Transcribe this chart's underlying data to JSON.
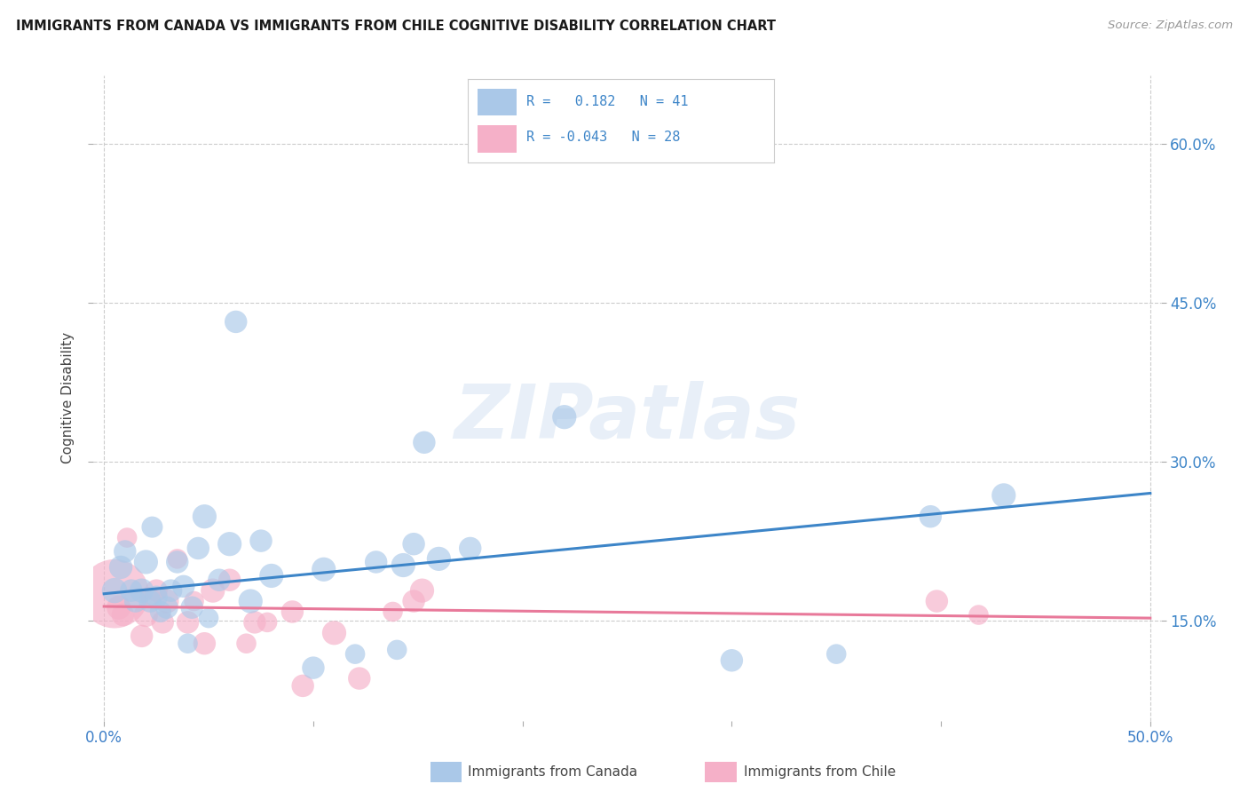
{
  "title": "IMMIGRANTS FROM CANADA VS IMMIGRANTS FROM CHILE COGNITIVE DISABILITY CORRELATION CHART",
  "source": "Source: ZipAtlas.com",
  "ylabel": "Cognitive Disability",
  "ytick_labels": [
    "15.0%",
    "30.0%",
    "45.0%",
    "60.0%"
  ],
  "ytick_values": [
    0.15,
    0.3,
    0.45,
    0.6
  ],
  "xlim": [
    -0.005,
    0.505
  ],
  "ylim": [
    0.055,
    0.665
  ],
  "xtick_values": [
    0.0,
    0.1,
    0.2,
    0.3,
    0.4,
    0.5
  ],
  "xtick_labels_visible": {
    "0.0": "0.0%",
    "0.5": "50.0%"
  },
  "legend_r_canada": "R =   0.182   N = 41",
  "legend_r_chile": "R = -0.043   N = 28",
  "canada_color": "#aac8e8",
  "chile_color": "#f5b0c8",
  "canada_line_color": "#3d85c8",
  "chile_line_color": "#e8799a",
  "watermark": "ZIPatlas",
  "canada_scatter_x": [
    0.005,
    0.008,
    0.01,
    0.013,
    0.015,
    0.018,
    0.02,
    0.022,
    0.023,
    0.025,
    0.027,
    0.03,
    0.032,
    0.035,
    0.038,
    0.04,
    0.042,
    0.045,
    0.048,
    0.05,
    0.055,
    0.06,
    0.063,
    0.07,
    0.075,
    0.08,
    0.1,
    0.105,
    0.12,
    0.13,
    0.14,
    0.143,
    0.148,
    0.153,
    0.16,
    0.175,
    0.22,
    0.3,
    0.35,
    0.395,
    0.43
  ],
  "canada_scatter_y": [
    0.178,
    0.2,
    0.215,
    0.178,
    0.168,
    0.178,
    0.205,
    0.168,
    0.238,
    0.172,
    0.158,
    0.162,
    0.178,
    0.205,
    0.182,
    0.128,
    0.162,
    0.218,
    0.248,
    0.152,
    0.188,
    0.222,
    0.432,
    0.168,
    0.225,
    0.192,
    0.105,
    0.198,
    0.118,
    0.205,
    0.122,
    0.202,
    0.222,
    0.318,
    0.208,
    0.218,
    0.342,
    0.112,
    0.118,
    0.248,
    0.268
  ],
  "canada_sizes": [
    35,
    30,
    28,
    28,
    28,
    32,
    32,
    28,
    25,
    28,
    25,
    28,
    28,
    28,
    28,
    22,
    28,
    28,
    32,
    22,
    28,
    32,
    28,
    32,
    28,
    32,
    28,
    32,
    22,
    28,
    22,
    32,
    28,
    28,
    32,
    28,
    32,
    28,
    22,
    28,
    32
  ],
  "chile_scatter_x": [
    0.005,
    0.007,
    0.009,
    0.011,
    0.018,
    0.02,
    0.022,
    0.025,
    0.028,
    0.03,
    0.035,
    0.04,
    0.043,
    0.048,
    0.052,
    0.06,
    0.068,
    0.072,
    0.078,
    0.09,
    0.095,
    0.11,
    0.122,
    0.138,
    0.148,
    0.152,
    0.398,
    0.418
  ],
  "chile_scatter_y": [
    0.175,
    0.162,
    0.155,
    0.228,
    0.135,
    0.155,
    0.172,
    0.178,
    0.148,
    0.168,
    0.208,
    0.148,
    0.168,
    0.128,
    0.178,
    0.188,
    0.128,
    0.148,
    0.148,
    0.158,
    0.088,
    0.138,
    0.095,
    0.158,
    0.168,
    0.178,
    0.168,
    0.155
  ],
  "chile_sizes": [
    260,
    32,
    28,
    22,
    28,
    32,
    22,
    28,
    28,
    32,
    22,
    28,
    22,
    28,
    32,
    28,
    22,
    28,
    22,
    28,
    28,
    32,
    28,
    22,
    28,
    32,
    28,
    22
  ],
  "trendline_canada_x0": 0.0,
  "trendline_canada_y0": 0.175,
  "trendline_canada_x1": 0.5,
  "trendline_canada_y1": 0.27,
  "trendline_chile_x0": 0.0,
  "trendline_chile_y0": 0.163,
  "trendline_chile_x1": 0.5,
  "trendline_chile_y1": 0.152
}
